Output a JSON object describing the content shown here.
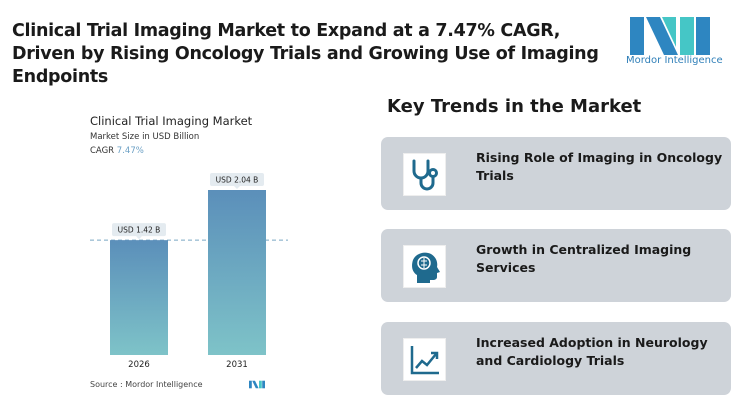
{
  "title": "Clinical Trial Imaging Market to Expand at a 7.47% CAGR, Driven by Rising Oncology Trials and Growing Use of Imaging Endpoints",
  "logo": {
    "text": "Mordor Intelligence",
    "colors": [
      "#2e86c1",
      "#45c6c6"
    ]
  },
  "chart_data": {
    "type": "bar",
    "title": "Clinical Trial Imaging Market",
    "subtitle": "Market Size in USD Billion",
    "cagr_label": "CAGR",
    "cagr_value": "7.47%",
    "categories": [
      "2026",
      "2031"
    ],
    "values": [
      1.42,
      2.04
    ],
    "data_labels": [
      "USD 1.42 B",
      "USD 2.04 B"
    ],
    "ylim": [
      0,
      2.04
    ],
    "reference_line": 1.42,
    "colors": {
      "top": "#5b8fba",
      "bottom": "#7ec3c8",
      "cagr": "#6a9fc4"
    },
    "source": "Source :  Mordor Intelligence"
  },
  "trends": {
    "heading": "Key Trends in the Market",
    "items": [
      {
        "label": "Rising Role of Imaging in Oncology Trials",
        "icon": "stethoscope-icon"
      },
      {
        "label": "Growth in Centralized Imaging Services",
        "icon": "brain-head-icon"
      },
      {
        "label": "Increased Adoption in Neurology and Cardiology Trials",
        "icon": "trend-chart-icon"
      }
    ]
  }
}
